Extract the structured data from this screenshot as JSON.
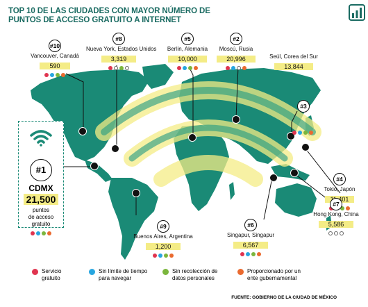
{
  "title": "TOP 10 DE LAS CIUDADES CON MAYOR NÚMERO DE PUNTOS DE ACCESO GRATUITO A INTERNET",
  "colors": {
    "ocean": "#ffffff",
    "land": "#1a8a76",
    "land_dark": "#157566",
    "band": "#f4ec86",
    "red": "#e0344f",
    "blue": "#27a6e0",
    "green": "#7bb63d",
    "orange": "#ea6a2f"
  },
  "featured": {
    "rank": "#1",
    "city": "CDMX",
    "value": "21,500",
    "desc_1": "puntos",
    "desc_2": "de acceso",
    "desc_3": "gratuito",
    "icon": "wifi-icon",
    "dots": [
      "red",
      "blue",
      "green",
      "orange"
    ]
  },
  "cities": [
    {
      "rank": "#10",
      "name": "Vancouver, Canadá",
      "value": "590",
      "dots": [
        "red",
        "blue",
        "green",
        "orange"
      ]
    },
    {
      "rank": "#8",
      "name": "Nueva York, Estados Unidos",
      "value": "3,319",
      "dots": [
        "red",
        "empty",
        "green",
        "empty"
      ]
    },
    {
      "rank": "#5",
      "name": "Berlín, Alemania",
      "value": "10,000",
      "dots": [
        "red",
        "blue",
        "green",
        "orange"
      ]
    },
    {
      "rank": "#2",
      "name": "Moscú, Rusia",
      "value": "20,996",
      "dots": [
        "red",
        "blue",
        "empty",
        "orange"
      ]
    },
    {
      "rank": "",
      "name": "Seúl, Corea del Sur",
      "value": "13,844",
      "dots": []
    },
    {
      "rank": "#3",
      "name": "",
      "value": "",
      "dots": [
        "red",
        "blue",
        "green",
        "orange"
      ]
    },
    {
      "rank": "#4",
      "name": "Tokio, Japón",
      "value": "11,401",
      "dots": [
        "red",
        "blue",
        "green",
        "orange"
      ]
    },
    {
      "rank": "#9",
      "name": "Buenos Aires, Argentina",
      "value": "1,200",
      "dots": [
        "red",
        "blue",
        "green",
        "orange"
      ]
    },
    {
      "rank": "#6",
      "name": "Singapur, Singapur",
      "value": "6,567",
      "dots": [
        "red",
        "blue",
        "green",
        "orange"
      ]
    },
    {
      "rank": "#7",
      "name": "Hong Kong, China",
      "value": "5,586",
      "dots": [
        "empty",
        "empty",
        "empty"
      ]
    }
  ],
  "legend": [
    {
      "color": "red",
      "text_1": "Servicio",
      "text_2": "gratuito"
    },
    {
      "color": "blue",
      "text_1": "Sin límite de tiempo",
      "text_2": "para navegar"
    },
    {
      "color": "green",
      "text_1": "Sin recolección de",
      "text_2": "datos personales"
    },
    {
      "color": "orange",
      "text_1": "Proporcionado por un",
      "text_2": "ente gubernamental"
    }
  ],
  "source": "FUENTE: GOBIERNO DE LA CIUDAD DE MÉXICO"
}
